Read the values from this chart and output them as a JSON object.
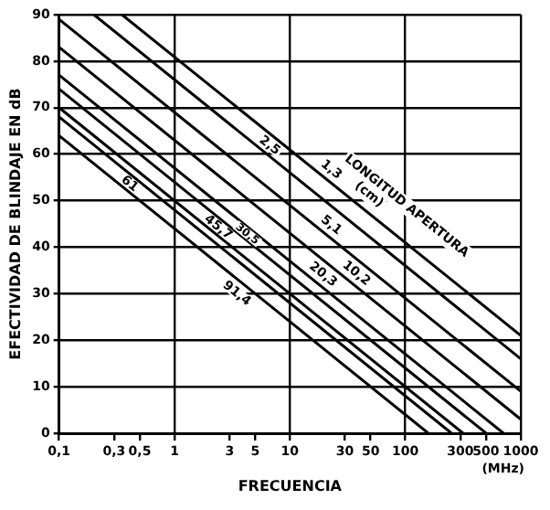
{
  "chart_data": {
    "type": "line",
    "xlabel": "FRECUENCIA",
    "ylabel": "EFECTIVIDAD DE BLINDAJE EN dB",
    "log": "x",
    "xlim": [
      0.1,
      1000
    ],
    "ylim": [
      0,
      90
    ],
    "xticks": [
      {
        "value": 0.1,
        "label": "0,1"
      },
      {
        "value": 0.3,
        "label": "0,3"
      },
      {
        "value": 0.5,
        "label": "0,5"
      },
      1,
      3,
      5,
      10,
      30,
      50,
      100,
      300,
      500,
      1000
    ],
    "yticks": [
      0,
      10,
      20,
      30,
      40,
      50,
      60,
      70,
      80,
      90
    ],
    "grid": true,
    "marker": "none",
    "line_style": "solid",
    "annotations": [
      "LONGITUD APERTURA",
      "(cm)",
      "(MHz)"
    ],
    "series": [
      {
        "name": "1,3",
        "color": "#000000",
        "x": [
          0.35,
          1000
        ],
        "values": [
          90,
          21
        ]
      },
      {
        "name": "2,5",
        "color": "#000000",
        "x": [
          0.2,
          1000
        ],
        "values": [
          90,
          16
        ]
      },
      {
        "name": "5,1",
        "color": "#000000",
        "x": [
          0.1,
          1000
        ],
        "values": [
          89,
          9
        ]
      },
      {
        "name": "10,2",
        "color": "#000000",
        "x": [
          0.1,
          1000
        ],
        "values": [
          83,
          3
        ]
      },
      {
        "name": "20,3",
        "color": "#000000",
        "x": [
          0.1,
          708
        ],
        "values": [
          77,
          0
        ]
      },
      {
        "name": "30,5",
        "color": "#000000",
        "x": [
          0.1,
          501
        ],
        "values": [
          74,
          0
        ]
      },
      {
        "name": "45,7",
        "color": "#000000",
        "x": [
          0.1,
          316
        ],
        "values": [
          70,
          0
        ]
      },
      {
        "name": "61",
        "color": "#000000",
        "x": [
          0.1,
          251
        ],
        "values": [
          68,
          0
        ]
      },
      {
        "name": "91,4",
        "color": "#000000",
        "x": [
          0.1,
          158
        ],
        "values": [
          64,
          0
        ]
      }
    ]
  }
}
